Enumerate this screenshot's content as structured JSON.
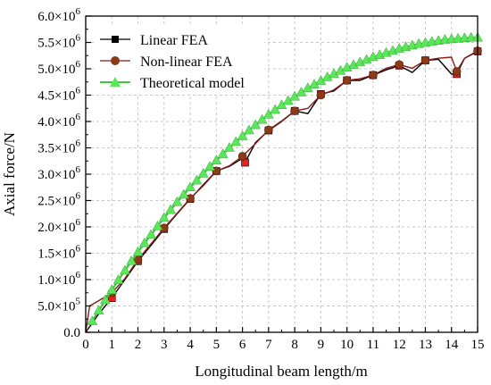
{
  "chart_data": {
    "type": "line",
    "title": "",
    "xlabel": "Longitudinal beam length/m",
    "ylabel": "Axial force/N",
    "xlim": [
      0,
      15
    ],
    "ylim": [
      0,
      6000000
    ],
    "grid": true,
    "legend_position": "top-left",
    "x_ticks": [
      {
        "value": 0,
        "label": "0"
      },
      {
        "value": 1,
        "label": "1"
      },
      {
        "value": 2,
        "label": "2"
      },
      {
        "value": 3,
        "label": "3"
      },
      {
        "value": 4,
        "label": "4"
      },
      {
        "value": 5,
        "label": "5"
      },
      {
        "value": 6,
        "label": "6"
      },
      {
        "value": 7,
        "label": "7"
      },
      {
        "value": 8,
        "label": "8"
      },
      {
        "value": 9,
        "label": "9"
      },
      {
        "value": 10,
        "label": "10"
      },
      {
        "value": 11,
        "label": "11"
      },
      {
        "value": 12,
        "label": "12"
      },
      {
        "value": 13,
        "label": "13"
      },
      {
        "value": 14,
        "label": "14"
      },
      {
        "value": 15,
        "label": "15"
      }
    ],
    "y_ticks": [
      {
        "value": 0,
        "mant": "0.0",
        "exp": ""
      },
      {
        "value": 500000,
        "mant": "5.0×10",
        "exp": "5"
      },
      {
        "value": 1000000,
        "mant": "1.0×10",
        "exp": "6"
      },
      {
        "value": 1500000,
        "mant": "1.5×10",
        "exp": "6"
      },
      {
        "value": 2000000,
        "mant": "2.0×10",
        "exp": "6"
      },
      {
        "value": 2500000,
        "mant": "2.5×10",
        "exp": "6"
      },
      {
        "value": 3000000,
        "mant": "3.0×10",
        "exp": "6"
      },
      {
        "value": 3500000,
        "mant": "3.5×10",
        "exp": "6"
      },
      {
        "value": 4000000,
        "mant": "4.0×10",
        "exp": "6"
      },
      {
        "value": 4500000,
        "mant": "4.5×10",
        "exp": "6"
      },
      {
        "value": 5000000,
        "mant": "5.0×10",
        "exp": "6"
      },
      {
        "value": 5500000,
        "mant": "5.5×10",
        "exp": "6"
      },
      {
        "value": 6000000,
        "mant": "6.0×10",
        "exp": "6"
      }
    ],
    "series": [
      {
        "name": "Linear FEA",
        "color": "#000000",
        "marker": "square",
        "marker_color": "#e8201e",
        "x": [
          0,
          0.5,
          1,
          1.5,
          2,
          2.5,
          3,
          3.5,
          4,
          4.5,
          5,
          5.5,
          6,
          6.1,
          6.5,
          7,
          7.5,
          8,
          8.5,
          9,
          9.5,
          10,
          10.5,
          11,
          11.5,
          12,
          12.5,
          13,
          13.5,
          14,
          14.2,
          14.5,
          15
        ],
        "y": [
          0,
          350000,
          650000,
          1000000,
          1350000,
          1650000,
          1960000,
          2250000,
          2530000,
          2800000,
          3060000,
          3150000,
          3300000,
          3220000,
          3600000,
          3830000,
          4000000,
          4200000,
          4150000,
          4520000,
          4580000,
          4780000,
          4780000,
          4880000,
          4980000,
          5060000,
          4930000,
          5160000,
          5180000,
          4900000,
          4900000,
          5200000,
          5330000
        ],
        "marker_x": [
          1,
          2,
          3,
          4,
          5,
          6.1,
          7,
          8,
          9,
          10,
          11,
          12,
          13,
          14.2,
          15
        ],
        "marker_y": [
          650000,
          1350000,
          1960000,
          2530000,
          3060000,
          3220000,
          3830000,
          4200000,
          4520000,
          4780000,
          4880000,
          5060000,
          5160000,
          4900000,
          5330000
        ]
      },
      {
        "name": "Non-linear FEA",
        "color": "#8b1a1a",
        "marker": "circle",
        "marker_color": "#8b3a1a",
        "x": [
          0,
          0.15,
          0.5,
          1,
          1.5,
          2,
          2.5,
          3,
          3.5,
          4,
          4.5,
          5,
          5.5,
          6,
          6.5,
          7,
          7.5,
          8,
          8.5,
          9,
          9.5,
          10,
          10.5,
          11,
          11.5,
          12,
          12.5,
          13,
          13.5,
          14,
          14.2,
          14.5,
          15
        ],
        "y": [
          0,
          500000,
          600000,
          750000,
          1020000,
          1380000,
          1680000,
          1980000,
          2260000,
          2540000,
          2780000,
          3060000,
          3160000,
          3340000,
          3580000,
          3840000,
          4010000,
          4200000,
          4250000,
          4500000,
          4600000,
          4780000,
          4810000,
          4880000,
          5010000,
          5080000,
          5010000,
          5160000,
          5200000,
          5220000,
          4950000,
          5200000,
          5340000
        ],
        "marker_x": [
          1,
          2,
          3,
          4,
          5,
          6,
          7,
          8,
          9,
          10,
          11,
          12,
          13,
          14.2,
          15
        ],
        "marker_y": [
          750000,
          1380000,
          1980000,
          2540000,
          3060000,
          3340000,
          3840000,
          4200000,
          4500000,
          4780000,
          4880000,
          5080000,
          5160000,
          4950000,
          5340000
        ]
      },
      {
        "name": "Theoretical model",
        "color": "#3ec83e",
        "marker": "triangle",
        "marker_color": "#5ae85a",
        "x": [
          0.25,
          0.5,
          0.75,
          1,
          1.25,
          1.5,
          1.75,
          2,
          2.25,
          2.5,
          2.75,
          3,
          3.25,
          3.5,
          3.75,
          4,
          4.25,
          4.5,
          4.75,
          5,
          5.25,
          5.5,
          5.75,
          6,
          6.25,
          6.5,
          6.75,
          7,
          7.25,
          7.5,
          7.75,
          8,
          8.25,
          8.5,
          8.75,
          9,
          9.25,
          9.5,
          9.75,
          10,
          10.25,
          10.5,
          10.75,
          11,
          11.25,
          11.5,
          11.75,
          12,
          12.25,
          12.5,
          12.75,
          13,
          13.25,
          13.5,
          13.75,
          14,
          14.25,
          14.5,
          14.75,
          15
        ],
        "y": [
          210000,
          410000,
          610000,
          800000,
          990000,
          1170000,
          1350000,
          1520000,
          1690000,
          1850000,
          2010000,
          2170000,
          2320000,
          2470000,
          2610000,
          2750000,
          2880000,
          3010000,
          3140000,
          3260000,
          3380000,
          3500000,
          3610000,
          3720000,
          3830000,
          3930000,
          4030000,
          4130000,
          4220000,
          4310000,
          4390000,
          4470000,
          4550000,
          4630000,
          4700000,
          4770000,
          4840000,
          4900000,
          4960000,
          5020000,
          5070000,
          5120000,
          5170000,
          5220000,
          5260000,
          5300000,
          5340000,
          5380000,
          5410000,
          5440000,
          5470000,
          5490000,
          5510000,
          5530000,
          5550000,
          5560000,
          5570000,
          5580000,
          5590000,
          5590000
        ]
      }
    ]
  }
}
